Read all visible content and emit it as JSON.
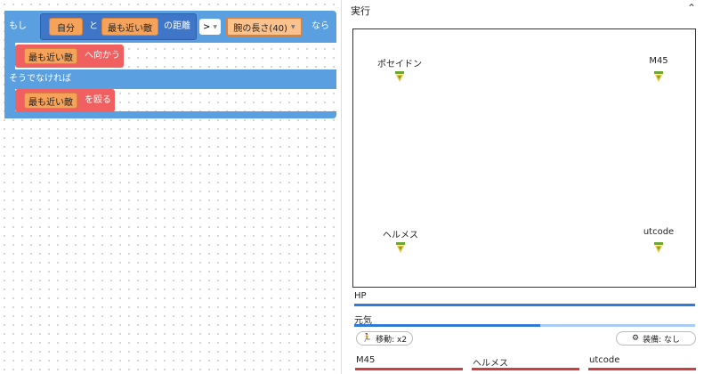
{
  "code": {
    "if_label": "もし",
    "self": "自分",
    "and": "と",
    "nearest_1": "最も近い敵",
    "distance": "の距離",
    "operator": ">",
    "arm_length": "腕の長さ(40)",
    "then": "なら",
    "nearest_2": "最も近い敵",
    "move_toward": "へ向かう",
    "else_label": "そうでなければ",
    "nearest_3": "最も近い敵",
    "punch": "を殴る"
  },
  "run_panel": {
    "title": "実行",
    "characters": [
      {
        "name": "ポセイドン"
      },
      {
        "name": "M45"
      },
      {
        "name": "ヘルメス"
      },
      {
        "name": "utcode"
      }
    ],
    "hp_label": "HP",
    "energy_label": "元気",
    "speed_button": "移動: x2",
    "equipment_button": "装備: なし",
    "enemies": [
      {
        "name": "M45"
      },
      {
        "name": "ヘルメス"
      },
      {
        "name": "utcode"
      }
    ]
  }
}
